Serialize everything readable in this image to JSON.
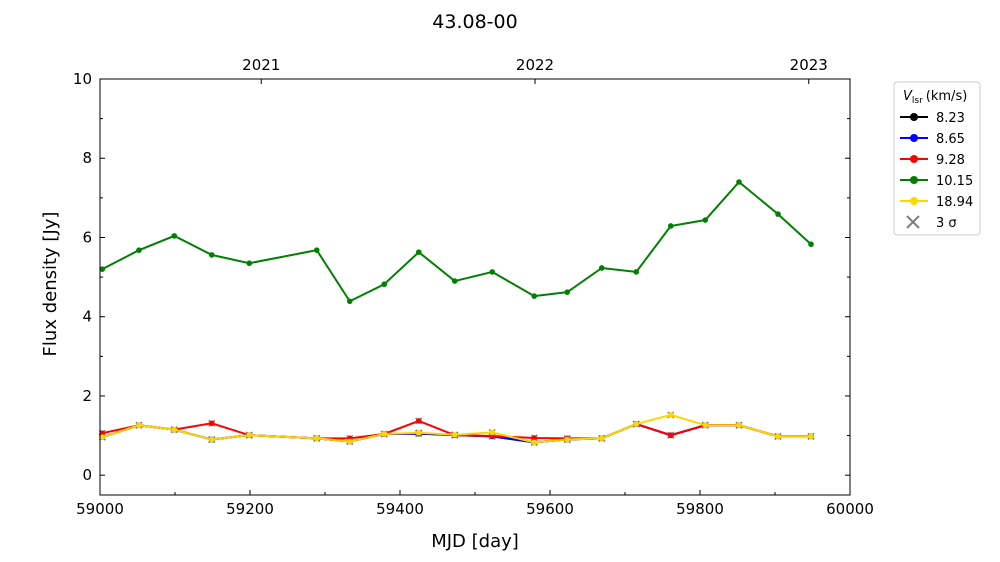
{
  "chart_data": {
    "type": "line",
    "title": "43.08-00",
    "xlabel": "MJD [day]",
    "ylabel": "Flux density [Jy]",
    "xlim": [
      59000,
      60000
    ],
    "ylim": [
      -0.5,
      10
    ],
    "xticks": [
      59000,
      59200,
      59400,
      59600,
      59800,
      60000
    ],
    "yticks": [
      0,
      2,
      4,
      6,
      8,
      10
    ],
    "top_axis": {
      "ticks": [
        {
          "label": "2021",
          "mjd": 59215
        },
        {
          "label": "2022",
          "mjd": 59580
        },
        {
          "label": "2023",
          "mjd": 59945
        }
      ]
    },
    "legend": {
      "title_main": "V",
      "title_sub": "lsr",
      "title_unit": "(km/s)",
      "placement": "outside-right",
      "sigma_label": "3 σ"
    },
    "x": [
      59003,
      59052,
      59099,
      59149,
      59199,
      59289,
      59333,
      59379,
      59425,
      59473,
      59523,
      59579,
      59623,
      59669,
      59715,
      59761,
      59807,
      59852,
      59904,
      59948
    ],
    "series": [
      {
        "name": "8.23",
        "color": "#000000",
        "values": [
          0.96,
          1.26,
          1.15,
          0.9,
          1.01,
          0.93,
          0.85,
          1.04,
          1.05,
          1.01,
          0.98,
          0.83,
          0.9,
          0.93,
          1.29,
          1.01,
          1.26,
          1.26,
          0.98,
          0.98
        ]
      },
      {
        "name": "8.65",
        "color": "#0000ff",
        "values": [
          0.96,
          1.26,
          1.15,
          0.9,
          1.01,
          0.93,
          0.85,
          1.04,
          1.05,
          1.01,
          0.98,
          0.83,
          0.9,
          0.93,
          1.29,
          1.01,
          1.26,
          1.26,
          0.98,
          0.98
        ]
      },
      {
        "name": "9.28",
        "color": "#ff0000",
        "values": [
          1.06,
          1.26,
          1.15,
          1.31,
          1.01,
          0.93,
          0.93,
          1.04,
          1.37,
          1.01,
          0.99,
          0.94,
          0.93,
          0.93,
          1.29,
          1.01,
          1.26,
          1.26,
          0.98,
          0.98
        ]
      },
      {
        "name": "10.15",
        "color": "#008000",
        "values": [
          5.2,
          5.68,
          6.04,
          5.56,
          5.35,
          5.68,
          4.39,
          4.82,
          5.63,
          4.9,
          5.13,
          4.52,
          4.62,
          5.23,
          5.13,
          6.29,
          6.44,
          7.4,
          6.59,
          5.83
        ]
      },
      {
        "name": "18.94",
        "color": "#ffd700",
        "values": [
          0.96,
          1.26,
          1.15,
          0.9,
          1.01,
          0.93,
          0.85,
          1.04,
          1.07,
          1.02,
          1.08,
          0.83,
          0.9,
          0.93,
          1.29,
          1.52,
          1.26,
          1.26,
          0.98,
          0.98
        ]
      }
    ]
  }
}
